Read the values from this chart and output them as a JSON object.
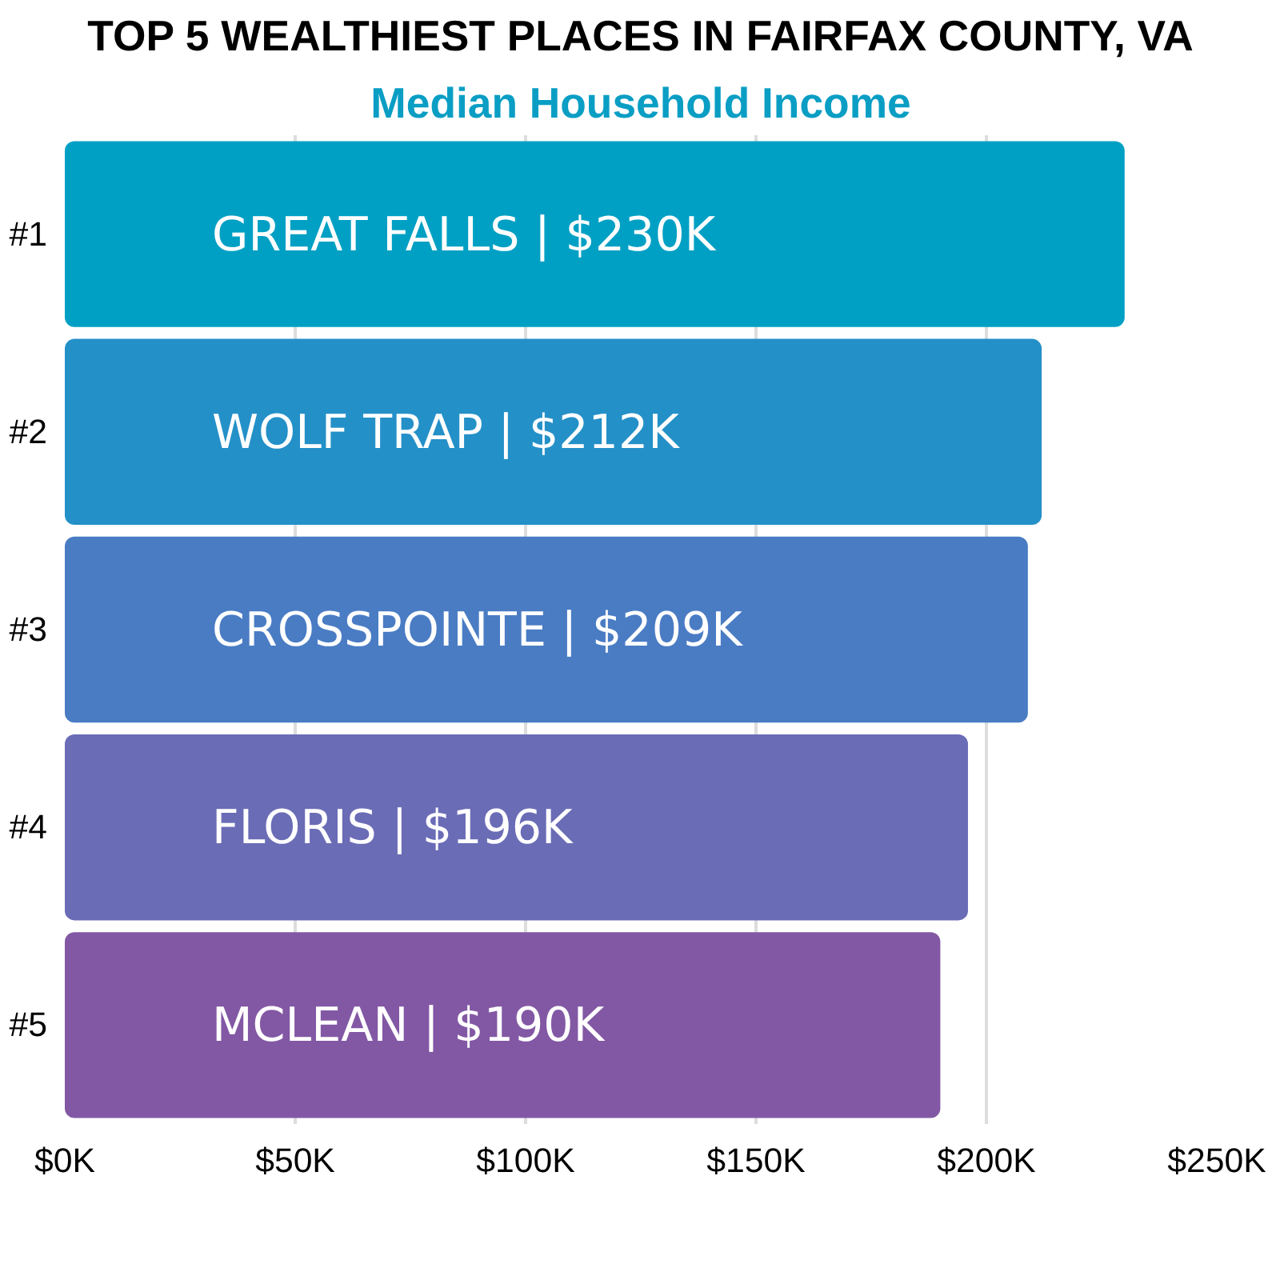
{
  "chart_data": {
    "type": "bar",
    "orientation": "horizontal",
    "title": "TOP 5 WEALTHIEST PLACES IN FAIRFAX COUNTY, VA",
    "subtitle": "Median Household Income",
    "categories": [
      "#1",
      "#2",
      "#3",
      "#4",
      "#5"
    ],
    "values": [
      230,
      212,
      209,
      196,
      190
    ],
    "colors": [
      "#00a0c4",
      "#2490c8",
      "#4a7cc4",
      "#6a6cb6",
      "#8258a4"
    ],
    "value_labels": [
      "GREAT FALLS | $230K",
      "WOLF TRAP | $212K",
      "CROSSPOINTE | $209K",
      "FLORIS | $196K",
      "MCLEAN | $190K"
    ],
    "xlim": [
      0,
      250
    ],
    "xticks": [
      {
        "value": 0,
        "label": "$0K"
      },
      {
        "value": 50,
        "label": "$50K"
      },
      {
        "value": 100,
        "label": "$100K"
      },
      {
        "value": 150,
        "label": "$150K"
      },
      {
        "value": 200,
        "label": "$200K"
      },
      {
        "value": 250,
        "label": "$250K"
      }
    ],
    "grid": "x"
  }
}
